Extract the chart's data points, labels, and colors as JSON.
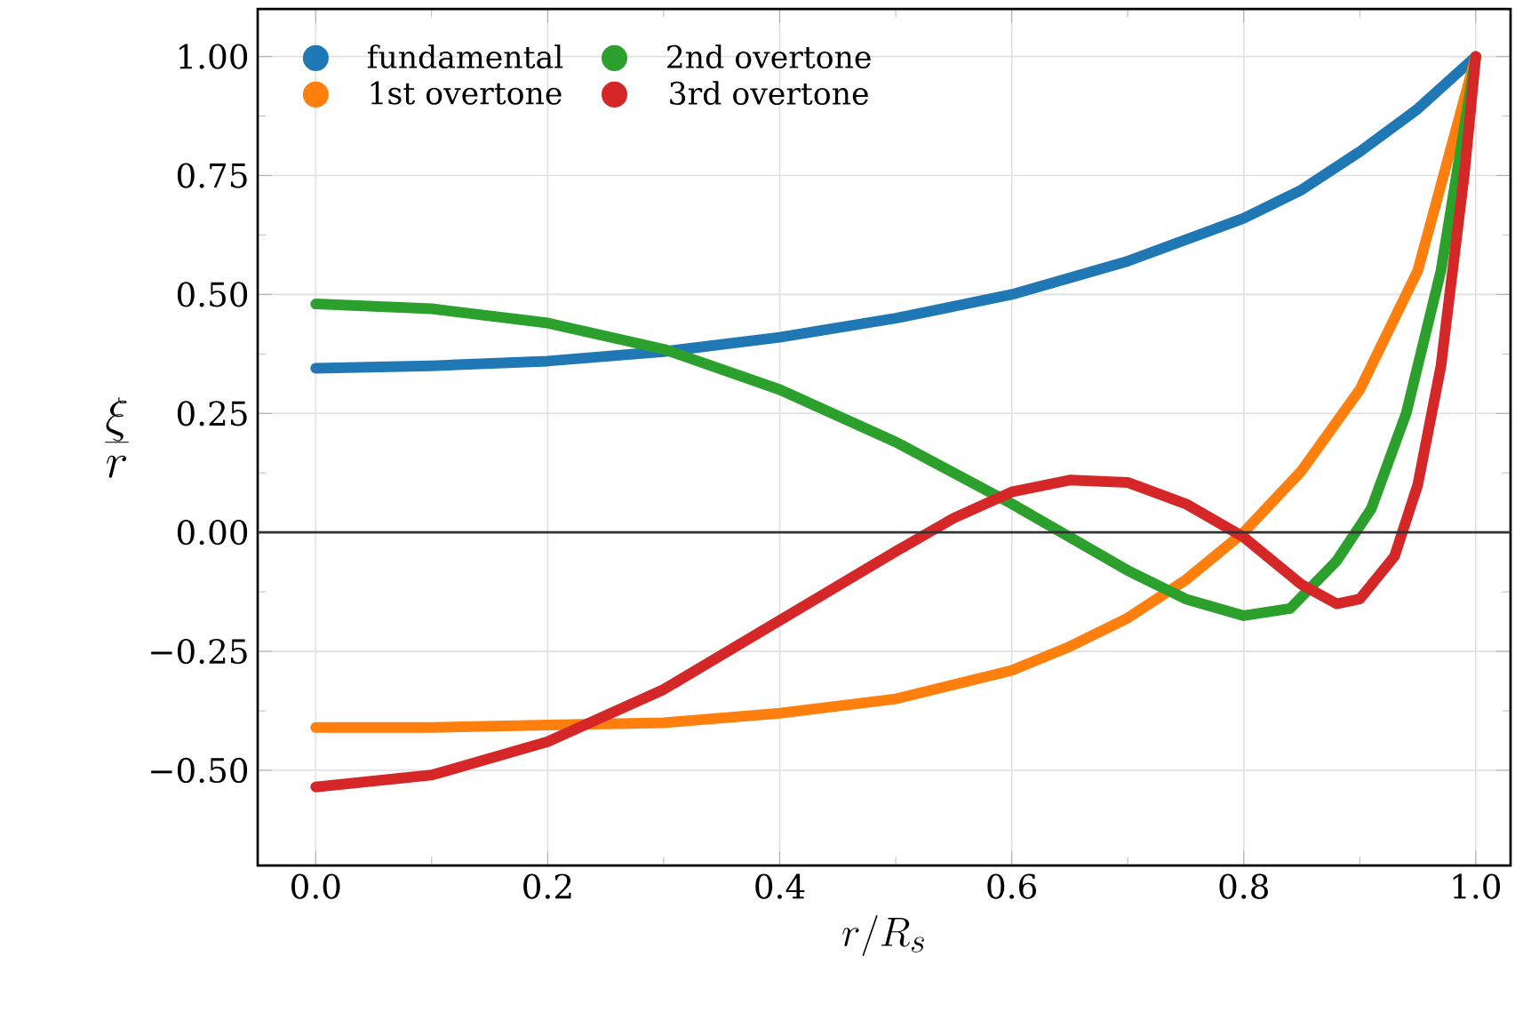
{
  "chart_data": {
    "type": "line",
    "xlabel": "r/R_s",
    "ylabel": "\\frac{\\xi}{r}",
    "xlim": [
      -0.05,
      1.03
    ],
    "ylim": [
      -0.7,
      1.1
    ],
    "xticks": [
      {
        "value": 0,
        "label": "0.0"
      },
      0.2,
      0.4,
      0.6,
      0.8,
      {
        "value": 1,
        "label": "1.0"
      }
    ],
    "yticks": [
      {
        "value": -0.5,
        "label": "−0.50"
      },
      {
        "value": -0.25,
        "label": "−0.25"
      },
      {
        "value": 0,
        "label": "0.00"
      },
      0.25,
      {
        "value": 0.5,
        "label": "0.50"
      },
      0.75,
      {
        "value": 1,
        "label": "1.00"
      }
    ],
    "grid": true,
    "legend": "top left",
    "ref_lines": [
      {
        "axis": "y",
        "value": 0,
        "color": "#333333"
      }
    ],
    "series": [
      {
        "name": "fundamental",
        "color": "#1f77b4",
        "x": [
          0,
          0.1,
          0.2,
          0.3,
          0.4,
          0.5,
          0.6,
          0.7,
          0.8,
          0.85,
          0.9,
          0.95,
          1.0
        ],
        "values": [
          0.345,
          0.35,
          0.36,
          0.38,
          0.41,
          0.45,
          0.5,
          0.57,
          0.66,
          0.72,
          0.8,
          0.89,
          1.0
        ]
      },
      {
        "name": "1st overtone",
        "color": "#ff7f0e",
        "x": [
          0,
          0.1,
          0.2,
          0.3,
          0.4,
          0.5,
          0.6,
          0.65,
          0.7,
          0.75,
          0.8,
          0.85,
          0.9,
          0.95,
          1.0
        ],
        "values": [
          -0.41,
          -0.41,
          -0.405,
          -0.4,
          -0.38,
          -0.35,
          -0.29,
          -0.24,
          -0.18,
          -0.1,
          0.0,
          0.13,
          0.3,
          0.55,
          1.0
        ]
      },
      {
        "name": "2nd overtone",
        "color": "#2ca02c",
        "x": [
          0,
          0.1,
          0.2,
          0.3,
          0.4,
          0.5,
          0.6,
          0.7,
          0.75,
          0.8,
          0.84,
          0.88,
          0.91,
          0.94,
          0.97,
          1.0
        ],
        "values": [
          0.48,
          0.47,
          0.44,
          0.385,
          0.3,
          0.19,
          0.06,
          -0.08,
          -0.14,
          -0.175,
          -0.16,
          -0.06,
          0.05,
          0.25,
          0.55,
          1.0
        ]
      },
      {
        "name": "3rd overtone",
        "color": "#d62728",
        "x": [
          0,
          0.1,
          0.2,
          0.3,
          0.4,
          0.5,
          0.55,
          0.6,
          0.65,
          0.7,
          0.75,
          0.8,
          0.85,
          0.88,
          0.9,
          0.93,
          0.95,
          0.97,
          0.99,
          1.0
        ],
        "values": [
          -0.535,
          -0.51,
          -0.44,
          -0.33,
          -0.185,
          -0.04,
          0.03,
          0.085,
          0.11,
          0.105,
          0.06,
          -0.01,
          -0.11,
          -0.15,
          -0.14,
          -0.05,
          0.1,
          0.35,
          0.75,
          1.0
        ]
      }
    ]
  }
}
